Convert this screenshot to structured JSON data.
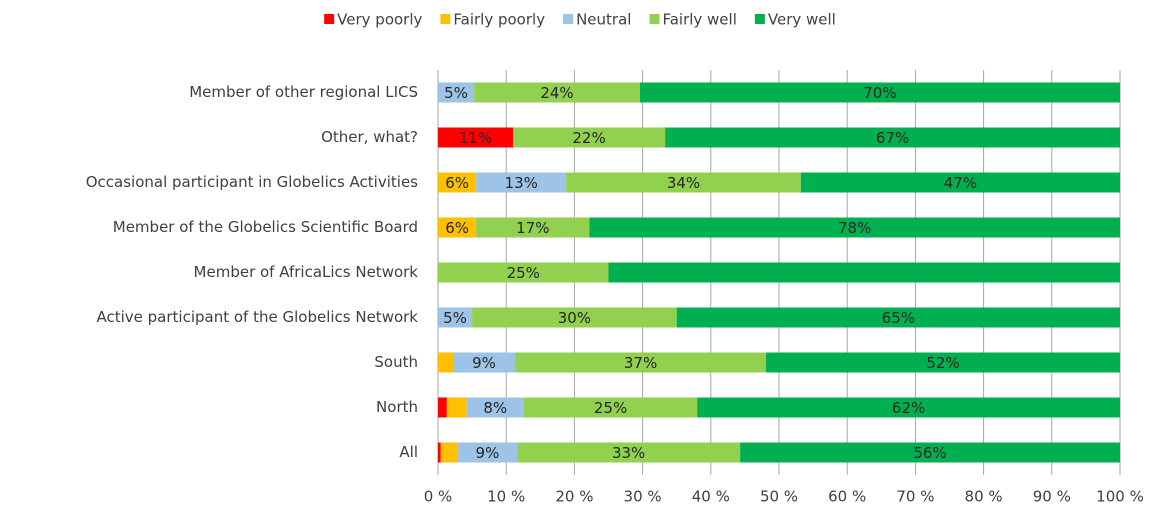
{
  "chart_data": {
    "type": "stacked_barh",
    "categories": [
      "Member of other regional LICS",
      "Other, what?",
      "Occasional participant in Globelics Activities",
      "Member of the Globelics Scientific Board",
      "Member of AfricaLics Network",
      "Active participant of the Globelics Network",
      "South",
      "North",
      "All"
    ],
    "series": [
      {
        "name": "Very poorly",
        "color": "#ff0000",
        "values": [
          0,
          11.0,
          0,
          0,
          0,
          0,
          0,
          1.3,
          0.4
        ],
        "value_labels": [
          null,
          "11%",
          null,
          null,
          null,
          null,
          null,
          null,
          null
        ]
      },
      {
        "name": "Fairly poorly",
        "color": "#ffc000",
        "values": [
          0,
          0,
          5.6,
          5.6,
          0,
          0,
          2.2,
          2.9,
          2.5
        ],
        "value_labels": [
          null,
          null,
          "6%",
          "6%",
          null,
          null,
          null,
          null,
          null
        ]
      },
      {
        "name": "Neutral",
        "color": "#9dc3e6",
        "values": [
          5.3,
          0,
          13.2,
          0,
          0,
          5.0,
          9.1,
          8.4,
          8.7
        ],
        "value_labels": [
          "5%",
          null,
          "13%",
          null,
          null,
          "5%",
          "9%",
          "8%",
          "9%"
        ]
      },
      {
        "name": "Fairly well",
        "color": "#92d050",
        "values": [
          24.3,
          22.3,
          34.4,
          16.6,
          25.0,
          30.0,
          36.8,
          25.4,
          32.7
        ],
        "value_labels": [
          "24%",
          "22%",
          "34%",
          "17%",
          "25%",
          "30%",
          "37%",
          "25%",
          "33%"
        ]
      },
      {
        "name": "Very well",
        "color": "#00b050",
        "values": [
          70.4,
          66.7,
          46.8,
          77.8,
          75.0,
          65.0,
          51.9,
          62.0,
          55.7
        ],
        "value_labels": [
          "70%",
          "67%",
          "47%",
          "78%",
          null,
          "65%",
          "52%",
          "62%",
          "56%"
        ]
      }
    ],
    "xlim": [
      0,
      100
    ],
    "xticks": [
      {
        "value": 0,
        "label": "0 %"
      },
      {
        "value": 10,
        "label": "10 %"
      },
      {
        "value": 20,
        "label": "20 %"
      },
      {
        "value": 30,
        "label": "30 %"
      },
      {
        "value": 40,
        "label": "40 %"
      },
      {
        "value": 50,
        "label": "50 %"
      },
      {
        "value": 60,
        "label": "60 %"
      },
      {
        "value": 70,
        "label": "70 %"
      },
      {
        "value": 80,
        "label": "80 %"
      },
      {
        "value": 90,
        "label": "90 %"
      },
      {
        "value": 100,
        "label": "100 %"
      }
    ],
    "grid": true,
    "legend": "top"
  }
}
